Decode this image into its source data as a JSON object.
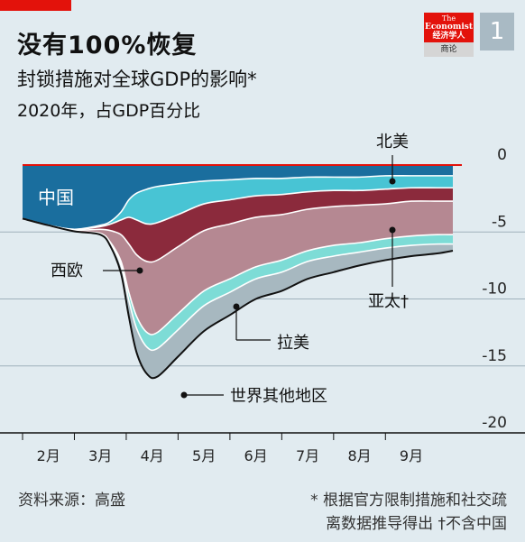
{
  "header": {
    "title": "没有100%恢复",
    "subtitle": "封锁措施对全球GDP的影响*",
    "subtitle2": "2020年，占GDP百分比"
  },
  "branding": {
    "logo_line1": "The",
    "logo_line2": "Economist",
    "logo_line3": "经济学人",
    "logo_sub": "商论",
    "badge": "1"
  },
  "footer": {
    "source": "资料来源：高盛",
    "note_line1": "* 根据官方限制措施和社交疏",
    "note_line2": "离数据推导得出 †不含中国"
  },
  "colors": {
    "background": "#e1ebf0",
    "china": "#1a6e9e",
    "north_america": "#48c4d4",
    "western_europe": "#8b2a3c",
    "asia_pacific": "#b58892",
    "latin_america": "#7ddcd6",
    "rest_of_world": "#a7b8c0",
    "zero_line": "#e3120b",
    "brand": "#e3120b"
  },
  "chart_data": {
    "type": "area",
    "stacked": true,
    "x": [
      0,
      0.5,
      1,
      1.5,
      1.7,
      1.9,
      2.05,
      2.2,
      2.4,
      2.6,
      3,
      3.5,
      4,
      4.5,
      5,
      5.5,
      6,
      6.5,
      7,
      7.5,
      8,
      8.3
    ],
    "ylim": [
      -20,
      0
    ],
    "yticks": [
      0,
      -5,
      -10,
      -15,
      -20
    ],
    "xticks": [
      {
        "label": "2月",
        "x": 0.5
      },
      {
        "label": "3月",
        "x": 1.5
      },
      {
        "label": "4月",
        "x": 2.5
      },
      {
        "label": "5月",
        "x": 3.5
      },
      {
        "label": "6月",
        "x": 4.5
      },
      {
        "label": "7月",
        "x": 5.5
      },
      {
        "label": "8月",
        "x": 6.5
      },
      {
        "label": "9月",
        "x": 7.5
      }
    ],
    "series": [
      {
        "name": "中国",
        "key": "china",
        "values": [
          -4,
          -4.5,
          -4.8,
          -4.5,
          -4.2,
          -3.5,
          -2.6,
          -2.1,
          -1.8,
          -1.6,
          -1.4,
          -1.2,
          -1.1,
          -1.0,
          -1.0,
          -0.9,
          -0.9,
          -0.9,
          -0.8,
          -0.8,
          -0.8,
          -0.8
        ]
      },
      {
        "name": "北美",
        "key": "north_america",
        "values": [
          0,
          0,
          0,
          -0.1,
          -0.2,
          -0.6,
          -1.3,
          -2.0,
          -2.6,
          -2.7,
          -2.3,
          -1.7,
          -1.5,
          -1.3,
          -1.2,
          -1.1,
          -1.0,
          -1.0,
          -1.0,
          -0.9,
          -0.9,
          -0.9
        ]
      },
      {
        "name": "西欧",
        "key": "western_europe",
        "values": [
          0,
          0,
          -0.05,
          -0.2,
          -0.5,
          -1.1,
          -2.0,
          -2.6,
          -2.8,
          -2.8,
          -2.4,
          -2.0,
          -1.8,
          -1.6,
          -1.5,
          -1.3,
          -1.2,
          -1.1,
          -1.1,
          -1.0,
          -1.0,
          -1.0
        ]
      },
      {
        "name": "亚太",
        "key": "asia_pacific",
        "values": [
          0,
          0,
          -0.1,
          -0.3,
          -0.9,
          -2.0,
          -3.6,
          -4.6,
          -5.3,
          -5.4,
          -5.0,
          -4.5,
          -4.1,
          -3.7,
          -3.4,
          -3.1,
          -2.9,
          -2.8,
          -2.6,
          -2.6,
          -2.5,
          -2.5
        ]
      },
      {
        "name": "拉美",
        "key": "latin_america",
        "values": [
          0,
          0,
          0,
          -0.05,
          -0.1,
          -0.3,
          -0.6,
          -0.9,
          -1.1,
          -1.2,
          -1.2,
          -1.1,
          -1.0,
          -0.9,
          -0.9,
          -0.8,
          -0.8,
          -0.7,
          -0.7,
          -0.7,
          -0.7,
          -0.7
        ]
      },
      {
        "name": "世界其他地区",
        "key": "rest_of_world",
        "values": [
          0,
          0,
          0,
          -0.05,
          -0.2,
          -0.6,
          -1.2,
          -1.8,
          -2.0,
          -2.1,
          -2.0,
          -1.9,
          -1.7,
          -1.5,
          -1.4,
          -1.3,
          -1.2,
          -1.0,
          -0.9,
          -0.8,
          -0.7,
          -0.5
        ]
      }
    ],
    "labels": {
      "china": "中国",
      "north_america": "北美",
      "western_europe": "西欧",
      "asia_pacific": "亚太†",
      "latin_america": "拉美",
      "rest_of_world": "世界其他地区"
    }
  }
}
